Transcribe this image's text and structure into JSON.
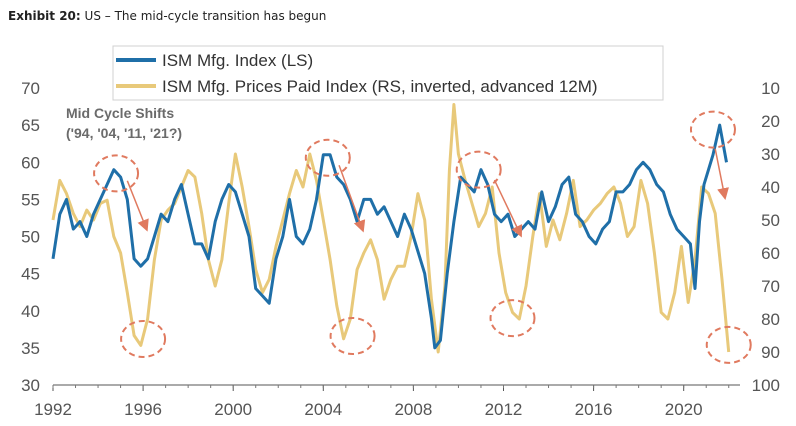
{
  "header": {
    "exhibit_label": "Exhibit 20:",
    "exhibit_title": "US – The mid-cycle transition has begun"
  },
  "colors": {
    "ism": "#1f6fa8",
    "prices": "#e8c97a",
    "circles": "#e07a5f",
    "arrows": "#e07a5f"
  },
  "chart_data": {
    "type": "line",
    "title": "",
    "legend": {
      "placement": "top",
      "entries": [
        "ISM Mfg. Index (LS)",
        "ISM Mfg. Prices Paid Index (RS, inverted, advanced 12M)"
      ]
    },
    "annotation": {
      "line1": "Mid Cycle Shifts",
      "line2": "('94, '04, '11, '21?)"
    },
    "x_axis": {
      "range": [
        1992,
        2022.5
      ],
      "ticks": [
        "1992",
        "1996",
        "2000",
        "2004",
        "2008",
        "2012",
        "2016",
        "2020"
      ]
    },
    "y_left": {
      "range": [
        30,
        70
      ],
      "ticks": [
        "70",
        "65",
        "60",
        "55",
        "50",
        "45",
        "40",
        "35",
        "30"
      ]
    },
    "y_right": {
      "range": [
        10,
        100
      ],
      "inverted": true,
      "ticks": [
        "10",
        "20",
        "30",
        "40",
        "50",
        "60",
        "70",
        "80",
        "90",
        "100"
      ]
    },
    "grid": false,
    "series": [
      {
        "name": "ISM Mfg. Index (LS)",
        "axis": "left",
        "x": [
          1992.0,
          1992.3,
          1992.6,
          1992.9,
          1993.2,
          1993.5,
          1993.8,
          1994.1,
          1994.4,
          1994.7,
          1995.0,
          1995.3,
          1995.6,
          1995.9,
          1996.2,
          1996.5,
          1996.8,
          1997.1,
          1997.4,
          1997.7,
          1998.0,
          1998.3,
          1998.6,
          1998.9,
          1999.2,
          1999.5,
          1999.8,
          2000.1,
          2000.4,
          2000.7,
          2001.0,
          2001.3,
          2001.6,
          2001.9,
          2002.2,
          2002.5,
          2002.8,
          2003.1,
          2003.4,
          2003.7,
          2004.0,
          2004.3,
          2004.6,
          2004.9,
          2005.2,
          2005.5,
          2005.8,
          2006.1,
          2006.4,
          2006.7,
          2007.0,
          2007.3,
          2007.6,
          2007.9,
          2008.2,
          2008.5,
          2008.8,
          2008.95,
          2009.2,
          2009.5,
          2009.8,
          2010.1,
          2010.4,
          2010.7,
          2011.0,
          2011.3,
          2011.6,
          2011.9,
          2012.2,
          2012.5,
          2012.8,
          2013.1,
          2013.4,
          2013.7,
          2014.0,
          2014.3,
          2014.6,
          2014.9,
          2015.2,
          2015.5,
          2015.8,
          2016.1,
          2016.4,
          2016.7,
          2017.0,
          2017.3,
          2017.6,
          2017.9,
          2018.2,
          2018.5,
          2018.8,
          2019.1,
          2019.4,
          2019.7,
          2020.0,
          2020.3,
          2020.5,
          2020.7,
          2020.9,
          2021.1,
          2021.3,
          2021.6,
          2021.9
        ],
        "values": [
          47,
          53,
          55,
          51,
          52,
          50,
          53,
          55,
          57,
          59,
          58,
          55,
          47,
          46,
          47,
          50,
          53,
          52,
          55,
          57,
          53,
          49,
          49,
          47,
          52,
          55,
          57,
          56,
          53,
          50,
          43,
          42,
          41,
          47,
          50,
          55,
          50,
          49,
          51,
          55,
          61,
          61,
          58,
          57,
          55,
          52,
          55,
          55,
          53,
          54,
          52,
          50,
          53,
          51,
          48,
          45,
          39,
          35,
          36,
          45,
          52,
          58,
          57,
          56,
          59,
          57,
          53,
          52,
          53,
          50,
          51,
          52,
          51,
          56,
          52,
          54,
          57,
          58,
          53,
          52,
          50,
          49,
          51,
          52,
          56,
          56,
          57,
          59,
          60,
          59,
          57,
          56,
          53,
          51,
          50,
          49,
          43,
          52,
          57,
          59,
          61,
          65,
          60
        ]
      },
      {
        "name": "ISM Mfg. Prices Paid Index (RS, inverted, advanced 12M)",
        "axis": "right",
        "x": [
          1992.0,
          1992.3,
          1992.6,
          1992.9,
          1993.2,
          1993.5,
          1993.8,
          1994.1,
          1994.4,
          1994.7,
          1995.0,
          1995.3,
          1995.6,
          1995.9,
          1996.2,
          1996.5,
          1996.8,
          1997.1,
          1997.4,
          1997.7,
          1998.0,
          1998.3,
          1998.6,
          1998.9,
          1999.2,
          1999.5,
          1999.8,
          2000.1,
          2000.4,
          2000.7,
          2001.0,
          2001.3,
          2001.6,
          2001.9,
          2002.2,
          2002.5,
          2002.8,
          2003.1,
          2003.4,
          2003.7,
          2004.0,
          2004.3,
          2004.6,
          2004.9,
          2005.2,
          2005.5,
          2005.8,
          2006.1,
          2006.4,
          2006.7,
          2007.0,
          2007.3,
          2007.6,
          2007.9,
          2008.2,
          2008.5,
          2008.8,
          2009.1,
          2009.4,
          2009.6,
          2009.8,
          2010.0,
          2010.3,
          2010.6,
          2010.9,
          2011.2,
          2011.5,
          2011.8,
          2012.1,
          2012.4,
          2012.7,
          2013.0,
          2013.3,
          2013.6,
          2013.9,
          2014.2,
          2014.5,
          2014.8,
          2015.1,
          2015.4,
          2015.7,
          2016.0,
          2016.3,
          2016.6,
          2016.9,
          2017.2,
          2017.5,
          2017.8,
          2018.1,
          2018.4,
          2018.7,
          2019.0,
          2019.3,
          2019.6,
          2019.9,
          2020.2,
          2020.5,
          2020.8,
          2021.1,
          2021.4,
          2021.7,
          2022.0
        ],
        "values": [
          50,
          38,
          42,
          48,
          52,
          47,
          50,
          45,
          44,
          55,
          60,
          72,
          85,
          88,
          80,
          62,
          50,
          47,
          45,
          40,
          35,
          37,
          48,
          62,
          70,
          62,
          45,
          30,
          40,
          52,
          65,
          72,
          68,
          58,
          50,
          42,
          35,
          40,
          30,
          38,
          50,
          62,
          76,
          86,
          80,
          65,
          60,
          56,
          62,
          74,
          68,
          64,
          64,
          55,
          42,
          50,
          74,
          90,
          70,
          35,
          15,
          30,
          38,
          45,
          52,
          48,
          40,
          60,
          72,
          78,
          80,
          70,
          55,
          42,
          58,
          50,
          56,
          48,
          38,
          52,
          50,
          47,
          45,
          42,
          40,
          45,
          55,
          52,
          38,
          45,
          60,
          78,
          80,
          72,
          58,
          75,
          62,
          40,
          42,
          48,
          68,
          90
        ]
      }
    ]
  },
  "annotations": {
    "circles": [
      {
        "x": 1994.8,
        "y": 58.5
      },
      {
        "x": 1996.0,
        "y": 36.2
      },
      {
        "x": 2004.2,
        "y": 60.6
      },
      {
        "x": 2005.3,
        "y": 36.6
      },
      {
        "x": 2010.9,
        "y": 59.0
      },
      {
        "x": 2012.4,
        "y": 39.0
      },
      {
        "x": 2021.3,
        "y": 64.4
      },
      {
        "x": 2022.0,
        "y": 35.4
      }
    ],
    "arrows": [
      {
        "x1": 1995.3,
        "y1": 57.5,
        "x2": 1996.1,
        "y2": 51.4
      },
      {
        "x1": 2004.7,
        "y1": 59.6,
        "x2": 2005.7,
        "y2": 51.3
      },
      {
        "x1": 2011.6,
        "y1": 57.6,
        "x2": 2012.7,
        "y2": 50.6
      },
      {
        "x1": 2021.4,
        "y1": 61.8,
        "x2": 2021.8,
        "y2": 55.7
      }
    ]
  }
}
